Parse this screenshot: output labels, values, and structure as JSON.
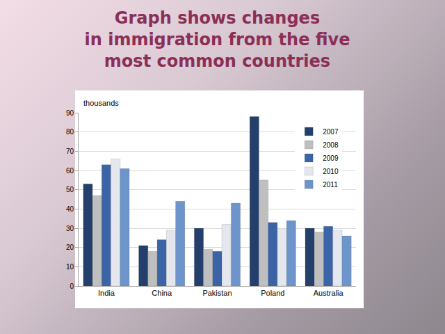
{
  "chart_data": {
    "type": "bar",
    "title": "Graph shows changes\nin immigration from the five\nmost common countries",
    "y_label": "thousands",
    "categories": [
      "India",
      "China",
      "Pakistan",
      "Poland",
      "Australia"
    ],
    "series": [
      {
        "name": "2007",
        "color": "#243f6b",
        "values": [
          53,
          21,
          30,
          88,
          30
        ]
      },
      {
        "name": "2008",
        "color": "#bfbfbf",
        "values": [
          47,
          18,
          19,
          55,
          28
        ]
      },
      {
        "name": "2009",
        "color": "#3a64a6",
        "values": [
          63,
          24,
          18,
          33,
          31
        ]
      },
      {
        "name": "2010",
        "color": "#e4e7ee",
        "values": [
          66,
          29,
          32,
          30,
          29
        ]
      },
      {
        "name": "2011",
        "color": "#6d94cb",
        "values": [
          61,
          44,
          43,
          34,
          26
        ]
      }
    ],
    "ylim": [
      0,
      90
    ],
    "yticks": [
      0,
      10,
      20,
      30,
      40,
      50,
      60,
      70,
      80,
      90
    ],
    "grid": true,
    "legend": "upper right"
  }
}
